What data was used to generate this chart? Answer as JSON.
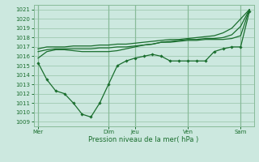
{
  "xlabel": "Pression niveau de la mer( hPa )",
  "ylim": [
    1008.5,
    1021.5
  ],
  "ytick_vals": [
    1009,
    1010,
    1011,
    1012,
    1013,
    1014,
    1015,
    1016,
    1017,
    1018,
    1019,
    1020,
    1021
  ],
  "bg_color": "#cce8df",
  "grid_color": "#88bb99",
  "line_color": "#1a6e2e",
  "day_labels": [
    "Mer",
    "Dim",
    "Jeu",
    "Ven",
    "Sam"
  ],
  "day_positions": [
    0,
    8,
    11,
    17,
    23
  ],
  "vline_positions": [
    0,
    8,
    11,
    17,
    23
  ],
  "xlim": [
    -0.5,
    24.5
  ],
  "num_points": 25,
  "line_upper1": [
    1016.8,
    1017.0,
    1017.0,
    1017.0,
    1017.1,
    1017.1,
    1017.1,
    1017.2,
    1017.2,
    1017.3,
    1017.3,
    1017.4,
    1017.5,
    1017.6,
    1017.7,
    1017.8,
    1017.8,
    1017.9,
    1018.0,
    1018.1,
    1018.2,
    1018.5,
    1019.0,
    1020.0,
    1021.0
  ],
  "line_upper2": [
    1016.5,
    1016.7,
    1016.8,
    1016.8,
    1016.8,
    1016.8,
    1016.8,
    1016.9,
    1016.9,
    1017.0,
    1017.0,
    1017.1,
    1017.2,
    1017.3,
    1017.5,
    1017.6,
    1017.7,
    1017.8,
    1017.8,
    1017.9,
    1017.9,
    1018.0,
    1018.3,
    1019.2,
    1021.0
  ],
  "line_mid": [
    1015.8,
    1016.5,
    1016.7,
    1016.7,
    1016.6,
    1016.5,
    1016.5,
    1016.5,
    1016.5,
    1016.6,
    1016.8,
    1017.0,
    1017.2,
    1017.3,
    1017.5,
    1017.5,
    1017.6,
    1017.7,
    1017.7,
    1017.8,
    1017.8,
    1017.8,
    1017.9,
    1018.2,
    1021.0
  ],
  "line_low": [
    1015.3,
    1013.5,
    1012.3,
    1012.0,
    1011.0,
    1009.8,
    1009.5,
    1011.0,
    1013.0,
    1015.0,
    1015.5,
    1015.8,
    1016.0,
    1016.2,
    1016.0,
    1015.5,
    1015.5,
    1015.5,
    1015.5,
    1015.5,
    1016.5,
    1016.8,
    1017.0,
    1017.0,
    1020.8
  ]
}
